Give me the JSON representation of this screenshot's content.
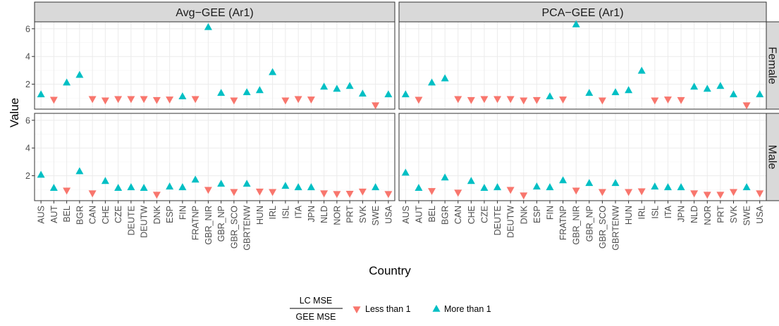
{
  "chart_data": {
    "type": "scatter",
    "xlabel": "Country",
    "ylabel": "Value",
    "ylim": [
      0.2,
      6.5
    ],
    "yticks": [
      2,
      4,
      6
    ],
    "grid": true,
    "legend": {
      "placement": "bottom",
      "title_top": "LC MSE",
      "title_bottom": "GEE MSE",
      "items": [
        {
          "label": "Less than 1",
          "shape": "triangle-down",
          "color": "#F8766D"
        },
        {
          "label": "More than 1",
          "shape": "triangle-up",
          "color": "#00BFC4"
        }
      ]
    },
    "columns": [
      "Avg−GEE (Ar1)",
      "PCA−GEE (Ar1)"
    ],
    "rows": [
      "Female",
      "Male"
    ],
    "categories": [
      "AUS",
      "AUT",
      "BEL",
      "BGR",
      "CAN",
      "CHE",
      "CZE",
      "DEUTE",
      "DEUTW",
      "DNK",
      "ESP",
      "FIN",
      "FRATNP",
      "GBR_NIR",
      "GBR_NP",
      "GBR_SCO",
      "GBRTENW",
      "HUN",
      "IRL",
      "ISL",
      "ITA",
      "JPN",
      "NLD",
      "NOR",
      "PRT",
      "SVK",
      "SWE",
      "USA"
    ],
    "panels": [
      {
        "column": 0,
        "row": 0,
        "values": [
          1.25,
          0.9,
          2.1,
          2.65,
          0.95,
          0.85,
          0.95,
          0.95,
          0.95,
          0.88,
          0.92,
          1.1,
          0.95,
          6.1,
          1.35,
          0.85,
          1.4,
          1.55,
          2.85,
          0.85,
          0.95,
          0.92,
          1.8,
          1.65,
          1.85,
          1.3,
          0.5,
          1.25
        ]
      },
      {
        "column": 1,
        "row": 0,
        "values": [
          1.25,
          0.9,
          2.1,
          2.4,
          0.95,
          0.88,
          0.95,
          0.95,
          0.95,
          0.85,
          0.88,
          1.1,
          0.92,
          6.3,
          1.35,
          0.85,
          1.4,
          1.55,
          2.95,
          0.85,
          0.92,
          0.88,
          1.8,
          1.65,
          1.85,
          1.25,
          0.5,
          1.25
        ]
      },
      {
        "column": 0,
        "row": 1,
        "values": [
          2.05,
          1.1,
          0.95,
          2.3,
          0.75,
          1.6,
          1.1,
          1.15,
          1.1,
          0.65,
          1.2,
          1.15,
          1.7,
          1.0,
          1.4,
          0.85,
          1.4,
          0.88,
          0.85,
          1.25,
          1.15,
          1.15,
          0.75,
          0.7,
          0.72,
          0.88,
          1.15,
          0.7
        ]
      },
      {
        "column": 1,
        "row": 1,
        "values": [
          2.2,
          1.1,
          0.92,
          1.85,
          0.8,
          1.6,
          1.1,
          1.15,
          1.0,
          0.6,
          1.2,
          1.15,
          1.65,
          0.95,
          1.45,
          0.85,
          1.45,
          0.85,
          0.9,
          1.2,
          1.15,
          1.15,
          0.75,
          0.65,
          0.65,
          0.85,
          1.15,
          0.75
        ]
      }
    ]
  }
}
